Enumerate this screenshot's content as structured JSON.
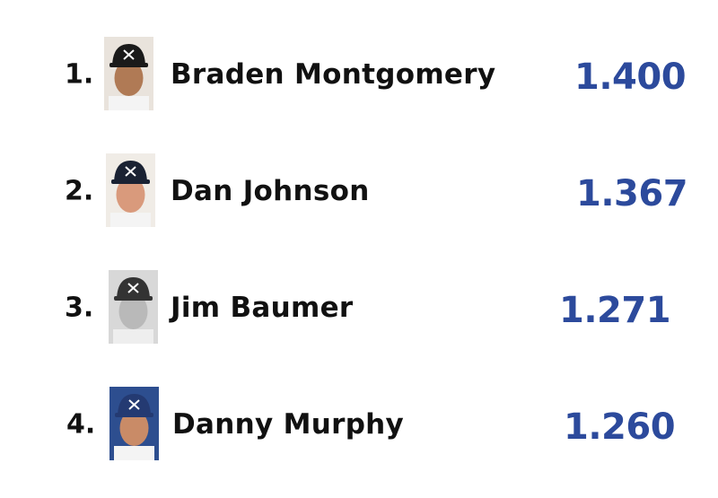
{
  "rows": [
    {
      "rank": "1.",
      "name": "Braden Montgomery",
      "value": "1.400"
    },
    {
      "rank": "2.",
      "name": "Dan Johnson",
      "value": "1.367"
    },
    {
      "rank": "3.",
      "name": "Jim Baumer",
      "value": "1.271"
    },
    {
      "rank": "4.",
      "name": "Danny Murphy",
      "value": "1.260"
    }
  ]
}
